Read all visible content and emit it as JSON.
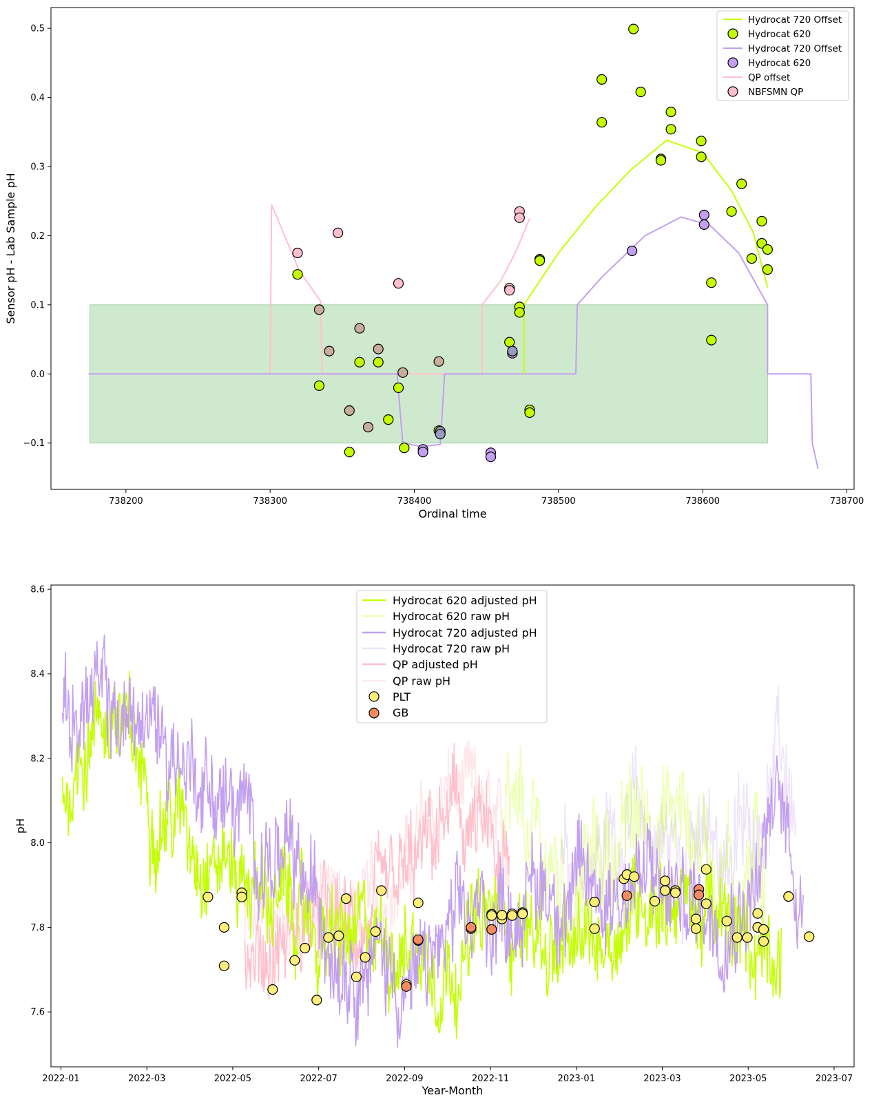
{
  "colors": {
    "h620": "#c3ff00",
    "h720": "#c39ff0",
    "qp": "#ffc0cb",
    "band": "#9fd3a0",
    "plt": "#ffef7a",
    "gb": "#f58b62",
    "mix_tan": "#c8ad9a",
    "mix_slate": "#9a9ac0"
  },
  "chart_data": [
    {
      "type": "line+scatter",
      "title": "",
      "xlabel": "Ordinal time",
      "ylabel": "Sensor pH - Lab Sample pH",
      "xlim": [
        738148,
        738705
      ],
      "ylim": [
        -0.167,
        0.53
      ],
      "xticks": [
        738200,
        738300,
        738400,
        738500,
        738600,
        738700
      ],
      "xtick_labels": [
        "738200",
        "738300",
        "738400",
        "738500",
        "738600",
        "738700"
      ],
      "yticks": [
        -0.1,
        0.0,
        0.1,
        0.2,
        0.3,
        0.4,
        0.5
      ],
      "ytick_labels": [
        "−0.1",
        "0.0",
        "0.1",
        "0.2",
        "0.3",
        "0.4",
        "0.5"
      ],
      "band": {
        "x0": 738175,
        "x1": 738645,
        "y0": -0.1,
        "y1": 0.1
      },
      "legend": [
        "Hydrocat 720 Offset",
        "Hydrocat 620",
        "Hydrocat 720 Offset",
        "Hydrocat 620",
        "QP offset",
        "NBFSMN QP"
      ],
      "offset_lines": {
        "h620": [
          [
            738476,
            0.0
          ],
          [
            738476,
            0.1
          ],
          [
            738500,
            0.175
          ],
          [
            738525,
            0.24
          ],
          [
            738550,
            0.295
          ],
          [
            738575,
            0.338
          ],
          [
            738600,
            0.32
          ],
          [
            738620,
            0.265
          ],
          [
            738635,
            0.205
          ],
          [
            738645,
            0.125
          ]
        ],
        "h720": [
          [
            738174,
            0.0
          ],
          [
            738388,
            0.0
          ],
          [
            738392,
            -0.1
          ],
          [
            738405,
            -0.105
          ],
          [
            738418,
            -0.102
          ],
          [
            738421,
            0.0
          ],
          [
            738512,
            0.0
          ],
          [
            738513,
            0.1
          ],
          [
            738530,
            0.14
          ],
          [
            738560,
            0.2
          ],
          [
            738585,
            0.227
          ],
          [
            738605,
            0.215
          ],
          [
            738625,
            0.175
          ],
          [
            738645,
            0.1
          ],
          [
            738645,
            0.0
          ],
          [
            738675,
            0.0
          ],
          [
            738676,
            -0.1
          ],
          [
            738680,
            -0.137
          ]
        ],
        "qp": [
          [
            738300,
            0.0
          ],
          [
            738301,
            0.245
          ],
          [
            738320,
            0.15
          ],
          [
            738335,
            0.105
          ],
          [
            738336,
            0.0
          ],
          [
            738447,
            0.0
          ],
          [
            738447,
            0.1
          ],
          [
            738460,
            0.135
          ],
          [
            738470,
            0.175
          ],
          [
            738480,
            0.225
          ]
        ]
      },
      "points_h620": [
        [
          738319,
          0.144
        ],
        [
          738334,
          -0.017
        ],
        [
          738355,
          -0.113
        ],
        [
          738362,
          0.017
        ],
        [
          738375,
          0.017
        ],
        [
          738382,
          -0.066
        ],
        [
          738389,
          -0.02
        ],
        [
          738393,
          -0.107
        ],
        [
          738417,
          -0.082
        ],
        [
          738466,
          0.046
        ],
        [
          738468,
          0.032
        ],
        [
          738473,
          0.097
        ],
        [
          738473,
          0.089
        ],
        [
          738480,
          -0.052
        ],
        [
          738480,
          -0.056
        ],
        [
          738487,
          0.166
        ],
        [
          738487,
          0.164
        ],
        [
          738530,
          0.426
        ],
        [
          738530,
          0.364
        ],
        [
          738552,
          0.499
        ],
        [
          738557,
          0.408
        ],
        [
          738571,
          0.311
        ],
        [
          738571,
          0.309
        ],
        [
          738578,
          0.379
        ],
        [
          738578,
          0.354
        ],
        [
          738599,
          0.337
        ],
        [
          738599,
          0.314
        ],
        [
          738606,
          0.132
        ],
        [
          738606,
          0.049
        ],
        [
          738620,
          0.235
        ],
        [
          738627,
          0.275
        ],
        [
          738634,
          0.167
        ],
        [
          738641,
          0.221
        ],
        [
          738641,
          0.189
        ],
        [
          738645,
          0.18
        ],
        [
          738645,
          0.151
        ]
      ],
      "points_h720": [
        [
          738406,
          -0.109
        ],
        [
          738406,
          -0.113
        ],
        [
          738418,
          -0.085
        ],
        [
          738453,
          -0.114
        ],
        [
          738453,
          -0.12
        ],
        [
          738468,
          0.03
        ],
        [
          738551,
          0.178
        ],
        [
          738601,
          0.23
        ],
        [
          738601,
          0.216
        ]
      ],
      "points_qp_pink": [
        [
          738319,
          0.175
        ],
        [
          738347,
          0.204
        ],
        [
          738389,
          0.131
        ],
        [
          738466,
          0.124
        ],
        [
          738466,
          0.121
        ],
        [
          738473,
          0.235
        ],
        [
          738473,
          0.226
        ]
      ],
      "points_qp_tan": [
        [
          738334,
          0.093
        ],
        [
          738341,
          0.033
        ],
        [
          738355,
          -0.053
        ],
        [
          738362,
          0.066
        ],
        [
          738368,
          -0.077
        ],
        [
          738375,
          0.036
        ],
        [
          738392,
          0.002
        ],
        [
          738417,
          0.018
        ]
      ],
      "points_slate": [
        [
          738418,
          -0.083
        ],
        [
          738418,
          -0.087
        ],
        [
          738468,
          0.033
        ]
      ]
    },
    {
      "type": "line+scatter",
      "title": "",
      "xlabel": "Year-Month",
      "ylabel": "pH",
      "ylim": [
        7.47,
        8.61
      ],
      "yticks": [
        7.6,
        7.8,
        8.0,
        8.2,
        8.4,
        8.6
      ],
      "ytick_labels": [
        "7.6",
        "7.8",
        "8.0",
        "8.2",
        "8.4",
        "8.6"
      ],
      "xtick_labels": [
        "2022-01",
        "2022-03",
        "2022-05",
        "2022-07",
        "2022-09",
        "2022-11",
        "2023-01",
        "2023-03",
        "2023-05",
        "2023-07"
      ],
      "legend": [
        "Hydrocat 620 adjusted pH",
        "Hydrocat 620 raw pH",
        "Hydrocat 720 adjusted pH",
        "Hydrocat 720 raw pH",
        "QP adjusted pH",
        "QP raw pH",
        "PLT",
        "GB"
      ],
      "trend_h620": [
        [
          1,
          8.1
        ],
        [
          20,
          8.28
        ],
        [
          35,
          8.32
        ],
        [
          60,
          8.12
        ],
        [
          100,
          8.0
        ],
        [
          150,
          7.85
        ],
        [
          190,
          7.75
        ],
        [
          230,
          7.78
        ],
        [
          260,
          7.72
        ],
        [
          300,
          7.83
        ],
        [
          320,
          7.8
        ],
        [
          335,
          7.75
        ],
        [
          345,
          7.7
        ],
        [
          375,
          7.8
        ],
        [
          400,
          7.9
        ],
        [
          420,
          7.88
        ],
        [
          445,
          7.8
        ],
        [
          465,
          7.75
        ],
        [
          485,
          7.78
        ],
        [
          490,
          7.82
        ]
      ],
      "trend_h720": [
        [
          1,
          8.25
        ],
        [
          20,
          8.34
        ],
        [
          35,
          8.3
        ],
        [
          60,
          8.28
        ],
        [
          100,
          8.15
        ],
        [
          140,
          7.98
        ],
        [
          160,
          7.9
        ],
        [
          190,
          7.78
        ],
        [
          220,
          7.72
        ],
        [
          240,
          7.65
        ],
        [
          250,
          7.72
        ],
        [
          300,
          7.85
        ],
        [
          330,
          7.9
        ],
        [
          360,
          7.88
        ],
        [
          390,
          7.92
        ],
        [
          410,
          7.88
        ],
        [
          440,
          7.85
        ],
        [
          470,
          7.9
        ],
        [
          490,
          8.1
        ],
        [
          505,
          7.85
        ]
      ],
      "trend_qp": [
        [
          125,
          7.72
        ],
        [
          150,
          7.76
        ],
        [
          170,
          7.82
        ],
        [
          200,
          7.78
        ],
        [
          220,
          7.82
        ],
        [
          245,
          7.95
        ],
        [
          265,
          8.06
        ],
        [
          285,
          8.02
        ],
        [
          300,
          7.9
        ],
        [
          305,
          7.9
        ]
      ],
      "points_plt": [
        [
          100,
          7.872
        ],
        [
          111,
          7.8
        ],
        [
          111,
          7.709
        ],
        [
          123,
          7.882
        ],
        [
          123,
          7.872
        ],
        [
          144,
          7.653
        ],
        [
          159,
          7.722
        ],
        [
          166,
          7.751
        ],
        [
          174,
          7.628
        ],
        [
          182,
          7.776
        ],
        [
          189,
          7.78
        ],
        [
          194,
          7.868
        ],
        [
          201,
          7.683
        ],
        [
          207,
          7.729
        ],
        [
          214,
          7.79
        ],
        [
          218,
          7.887
        ],
        [
          235,
          7.665
        ],
        [
          243,
          7.769
        ],
        [
          243,
          7.858
        ],
        [
          279,
          7.797
        ],
        [
          293,
          7.831
        ],
        [
          293,
          7.828
        ],
        [
          300,
          7.82
        ],
        [
          300,
          7.829
        ],
        [
          307,
          7.832
        ],
        [
          307,
          7.828
        ],
        [
          314,
          7.835
        ],
        [
          314,
          7.832
        ],
        [
          363,
          7.86
        ],
        [
          363,
          7.797
        ],
        [
          383,
          7.915
        ],
        [
          385,
          7.925
        ],
        [
          390,
          7.92
        ],
        [
          404,
          7.862
        ],
        [
          411,
          7.91
        ],
        [
          411,
          7.887
        ],
        [
          418,
          7.887
        ],
        [
          418,
          7.882
        ],
        [
          432,
          7.82
        ],
        [
          432,
          7.797
        ],
        [
          439,
          7.937
        ],
        [
          439,
          7.856
        ],
        [
          453,
          7.815
        ],
        [
          460,
          7.776
        ],
        [
          467,
          7.776
        ],
        [
          474,
          7.833
        ],
        [
          474,
          7.8
        ],
        [
          478,
          7.795
        ],
        [
          478,
          7.767
        ],
        [
          495,
          7.873
        ],
        [
          509,
          7.778
        ]
      ],
      "points_gb": [
        [
          235,
          7.66
        ],
        [
          243,
          7.771
        ],
        [
          279,
          7.8
        ],
        [
          293,
          7.795
        ],
        [
          385,
          7.875
        ],
        [
          434,
          7.89
        ],
        [
          434,
          7.877
        ]
      ]
    }
  ]
}
